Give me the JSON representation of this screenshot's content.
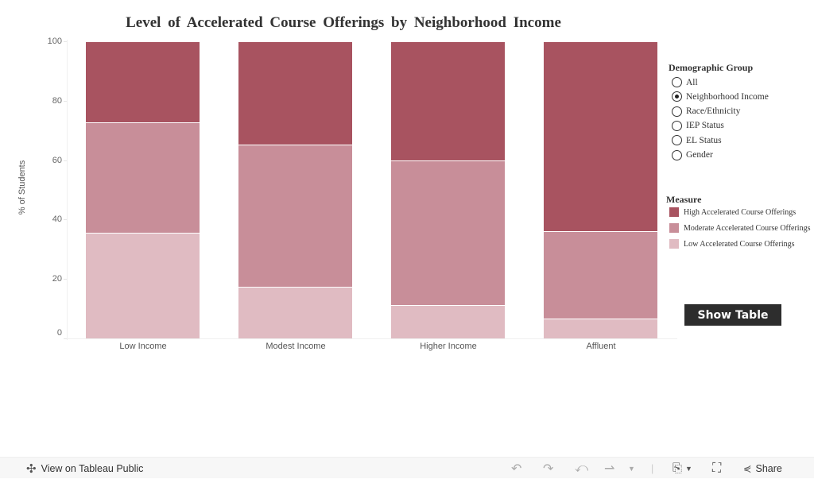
{
  "title": "Level of Accelerated Course Offerings by Neighborhood Income",
  "chart_data": {
    "type": "bar",
    "stacked": true,
    "title": "Level of Accelerated Course Offerings by Neighborhood Income",
    "xlabel": "",
    "ylabel": "% of Students",
    "ylim": [
      0,
      100
    ],
    "yticks": [
      0,
      20,
      40,
      60,
      80,
      100
    ],
    "grid": false,
    "legend_position": "right",
    "categories": [
      "Low Income",
      "Modest Income",
      "Higher Income",
      "Affluent"
    ],
    "series": [
      {
        "name": "Low Accelerated Course Offerings",
        "color": "#e0bbc2",
        "values": [
          35.6,
          17.4,
          11.2,
          6.7
        ]
      },
      {
        "name": "Moderate Accelerated Course Offerings",
        "color": "#c88e99",
        "values": [
          37.1,
          47.8,
          48.7,
          29.4
        ]
      },
      {
        "name": "High Accelerated Course Offerings",
        "color": "#a85360",
        "values": [
          27.3,
          34.8,
          40.1,
          63.9
        ]
      }
    ]
  },
  "demographic_filter": {
    "title": "Demographic Group",
    "options": [
      {
        "label": "All",
        "selected": false
      },
      {
        "label": "Neighborhood Income",
        "selected": true
      },
      {
        "label": "Race/Ethnicity",
        "selected": false
      },
      {
        "label": "IEP Status",
        "selected": false
      },
      {
        "label": "EL Status",
        "selected": false
      },
      {
        "label": "Gender",
        "selected": false
      }
    ]
  },
  "measure_legend": {
    "title": "Measure",
    "items": [
      {
        "label": "High Accelerated Course Offerings",
        "color": "#a85360"
      },
      {
        "label": "Moderate Accelerated Course Offerings",
        "color": "#c88e99"
      },
      {
        "label": "Low Accelerated Course Offerings",
        "color": "#e0bbc2"
      }
    ]
  },
  "show_table_label": "Show Table",
  "footer": {
    "view_on_label": "View on Tableau Public",
    "share_label": "Share"
  }
}
